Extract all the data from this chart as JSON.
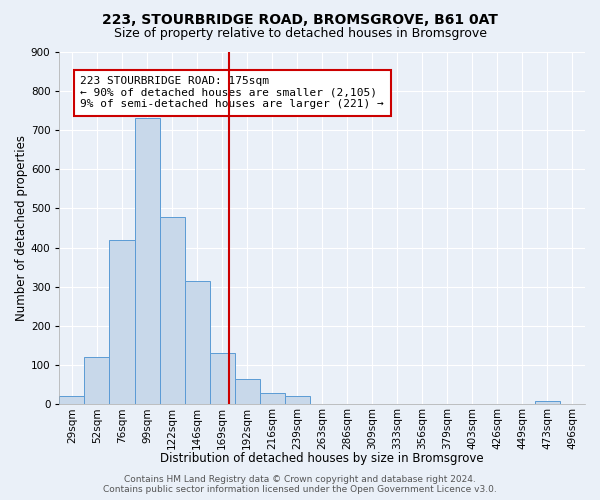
{
  "title": "223, STOURBRIDGE ROAD, BROMSGROVE, B61 0AT",
  "subtitle": "Size of property relative to detached houses in Bromsgrove",
  "xlabel": "Distribution of detached houses by size in Bromsgrove",
  "ylabel": "Number of detached properties",
  "bin_labels": [
    "29sqm",
    "52sqm",
    "76sqm",
    "99sqm",
    "122sqm",
    "146sqm",
    "169sqm",
    "192sqm",
    "216sqm",
    "239sqm",
    "263sqm",
    "286sqm",
    "309sqm",
    "333sqm",
    "356sqm",
    "379sqm",
    "403sqm",
    "426sqm",
    "449sqm",
    "473sqm",
    "496sqm"
  ],
  "bar_heights": [
    20,
    120,
    420,
    730,
    478,
    315,
    130,
    65,
    28,
    20,
    0,
    0,
    0,
    0,
    0,
    0,
    0,
    0,
    0,
    8,
    0
  ],
  "bar_color": "#c8d8ea",
  "bar_edge_color": "#5b9bd5",
  "vline_bin": 7,
  "vline_color": "#cc0000",
  "ylim": [
    0,
    900
  ],
  "yticks": [
    0,
    100,
    200,
    300,
    400,
    500,
    600,
    700,
    800,
    900
  ],
  "annotation_title": "223 STOURBRIDGE ROAD: 175sqm",
  "annotation_line1": "← 90% of detached houses are smaller (2,105)",
  "annotation_line2": "9% of semi-detached houses are larger (221) →",
  "annotation_box_color": "#ffffff",
  "annotation_box_edge_color": "#cc0000",
  "footer1": "Contains HM Land Registry data © Crown copyright and database right 2024.",
  "footer2": "Contains public sector information licensed under the Open Government Licence v3.0.",
  "background_color": "#eaf0f8",
  "grid_color": "#ffffff",
  "title_fontsize": 10,
  "subtitle_fontsize": 9,
  "axis_label_fontsize": 8.5,
  "tick_fontsize": 7.5,
  "annotation_fontsize": 8,
  "footer_fontsize": 6.5
}
